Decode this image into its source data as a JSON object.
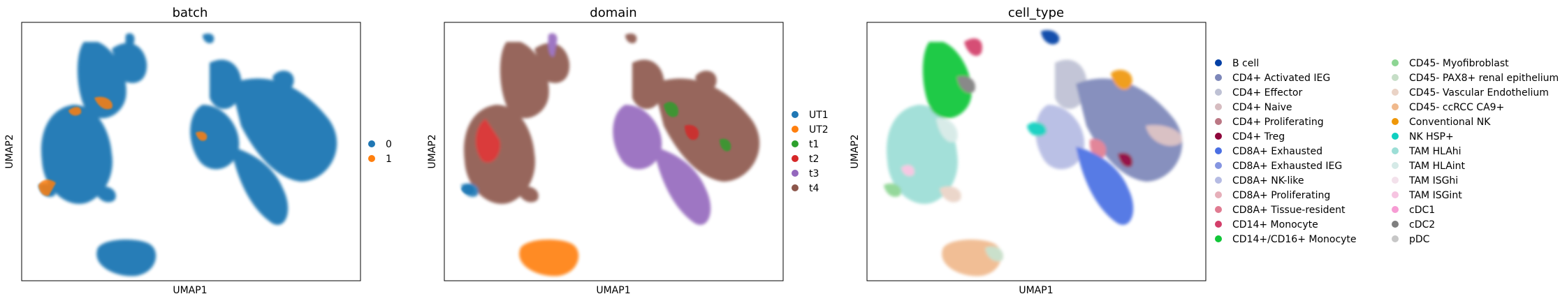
{
  "panels": [
    {
      "title": "batch",
      "xlabel": "UMAP1",
      "ylabel": "UMAP2"
    },
    {
      "title": "domain",
      "xlabel": "UMAP1",
      "ylabel": "UMAP2"
    },
    {
      "title": "cell_type",
      "xlabel": "UMAP1",
      "ylabel": "UMAP2"
    }
  ],
  "chart_data": [
    {
      "type": "scatter",
      "title": "batch",
      "xlabel": "UMAP1",
      "ylabel": "UMAP2",
      "grid": false,
      "ticks": false,
      "legend_position": "right",
      "series": [
        {
          "name": "0",
          "color": "#1f77b4"
        },
        {
          "name": "1",
          "color": "#ff7f0e"
        }
      ]
    },
    {
      "type": "scatter",
      "title": "domain",
      "xlabel": "UMAP1",
      "ylabel": "UMAP2",
      "grid": false,
      "ticks": false,
      "legend_position": "right",
      "series": [
        {
          "name": "UT1",
          "color": "#1f77b4"
        },
        {
          "name": "UT2",
          "color": "#ff7f0e"
        },
        {
          "name": "t1",
          "color": "#2ca02c"
        },
        {
          "name": "t2",
          "color": "#d62728"
        },
        {
          "name": "t3",
          "color": "#9467bd"
        },
        {
          "name": "t4",
          "color": "#8c564b"
        }
      ]
    },
    {
      "type": "scatter",
      "title": "cell_type",
      "xlabel": "UMAP1",
      "ylabel": "UMAP2",
      "grid": false,
      "ticks": false,
      "legend_position": "right",
      "series": [
        {
          "name": "B cell",
          "color": "#023fa5"
        },
        {
          "name": "CD4+ Activated IEG",
          "color": "#7d87b9"
        },
        {
          "name": "CD4+ Effector",
          "color": "#bec1d4"
        },
        {
          "name": "CD4+ Naive",
          "color": "#d6bcc0"
        },
        {
          "name": "CD4+ Proliferating",
          "color": "#bb7784"
        },
        {
          "name": "CD4+ Treg",
          "color": "#8e063b"
        },
        {
          "name": "CD8A+ Exhausted",
          "color": "#4a6fe3"
        },
        {
          "name": "CD8A+ Exhausted IEG",
          "color": "#8595e1"
        },
        {
          "name": "CD8A+ NK-like",
          "color": "#b5bbe3"
        },
        {
          "name": "CD8A+ Proliferating",
          "color": "#e6afb9"
        },
        {
          "name": "CD8A+ Tissue-resident",
          "color": "#e07b91"
        },
        {
          "name": "CD14+ Monocyte",
          "color": "#d33f6a"
        },
        {
          "name": "CD14+/CD16+ Monocyte",
          "color": "#11c638"
        },
        {
          "name": "CD45- Myofibroblast",
          "color": "#8dd593"
        },
        {
          "name": "CD45- PAX8+ renal epithelium",
          "color": "#c6dec7"
        },
        {
          "name": "CD45- Vascular Endothelium",
          "color": "#ead3c6"
        },
        {
          "name": "CD45- ccRCC CA9+",
          "color": "#f0b98d"
        },
        {
          "name": "Conventional NK",
          "color": "#ef9708"
        },
        {
          "name": "NK HSP+",
          "color": "#0fcfc0"
        },
        {
          "name": "TAM HLAhi",
          "color": "#9cded6"
        },
        {
          "name": "TAM HLAint",
          "color": "#d5eae7"
        },
        {
          "name": "TAM ISGhi",
          "color": "#f3e1eb"
        },
        {
          "name": "TAM ISGint",
          "color": "#f6c4e1"
        },
        {
          "name": "cDC1",
          "color": "#f79cd4"
        },
        {
          "name": "cDC2",
          "color": "#7f7f7f"
        },
        {
          "name": "pDC",
          "color": "#c7c7c7"
        }
      ]
    }
  ]
}
